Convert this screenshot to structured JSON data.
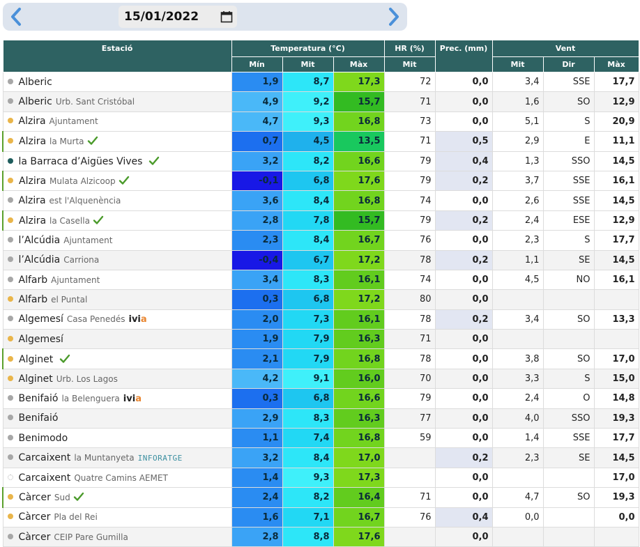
{
  "nav": {
    "prev_icon": "chevron-left-icon",
    "next_icon": "chevron-right-icon",
    "date": "15/01/2022",
    "calendar_icon": "calendar-icon"
  },
  "headers": {
    "station": "Estació",
    "temperature": "Temperatura (°C)",
    "hr": "HR (%)",
    "prec": "Prec. (mm)",
    "wind": "Vent",
    "min": "Mín",
    "mit": "Mit",
    "max": "Màx",
    "hr_mit": "Mit",
    "wind_mit": "Mit",
    "wind_dir": "Dir",
    "wind_max": "Màx"
  },
  "colors": {
    "header_bg": "#2e6262",
    "accent_green": "#5aa02c",
    "rain_cell": "#e2e6f2"
  },
  "rows": [
    {
      "name": "Alberic",
      "loc": "",
      "dot": "grey",
      "check": false,
      "brand": "",
      "hl": false,
      "tmin": "1,9",
      "tmit": "8,7",
      "tmax": "17,3",
      "hr": "72",
      "prec": "0,0",
      "vmit": "3,4",
      "vdir": "SSE",
      "vmax": "17,7"
    },
    {
      "name": "Alberic",
      "loc": "Urb. Sant Cristóbal",
      "dot": "grey",
      "check": false,
      "brand": "",
      "hl": false,
      "tmin": "4,9",
      "tmit": "9,2",
      "tmax": "15,7",
      "hr": "71",
      "prec": "0,0",
      "vmit": "1,6",
      "vdir": "SO",
      "vmax": "12,9"
    },
    {
      "name": "Alzira",
      "loc": "Ajuntament",
      "dot": "yellow",
      "check": false,
      "brand": "",
      "hl": false,
      "tmin": "4,7",
      "tmit": "9,3",
      "tmax": "16,8",
      "hr": "73",
      "prec": "0,0",
      "vmit": "5,1",
      "vdir": "S",
      "vmax": "20,9"
    },
    {
      "name": "Alzira",
      "loc": "la Murta",
      "dot": "yellow",
      "check": true,
      "brand": "",
      "hl": true,
      "tmin": "0,7",
      "tmit": "4,5",
      "tmax": "13,5",
      "hr": "71",
      "prec": "0,5",
      "vmit": "2,9",
      "vdir": "E",
      "vmax": "11,1"
    },
    {
      "name": "la Barraca d’Aigües Vives",
      "loc": "",
      "dot": "teal",
      "check": true,
      "brand": "",
      "hl": false,
      "tmin": "3,2",
      "tmit": "8,2",
      "tmax": "16,6",
      "hr": "79",
      "prec": "0,4",
      "vmit": "1,3",
      "vdir": "SSO",
      "vmax": "14,5"
    },
    {
      "name": "Alzira",
      "loc": "Mulata Alzicoop",
      "dot": "yellow",
      "check": true,
      "brand": "",
      "hl": true,
      "tmin": "-0,1",
      "tmit": "6,8",
      "tmax": "17,6",
      "hr": "79",
      "prec": "0,2",
      "vmit": "3,7",
      "vdir": "SSE",
      "vmax": "16,1"
    },
    {
      "name": "Alzira",
      "loc": "est l'Alquenència",
      "dot": "grey",
      "check": false,
      "brand": "",
      "hl": false,
      "tmin": "3,6",
      "tmit": "8,4",
      "tmax": "16,8",
      "hr": "74",
      "prec": "0,0",
      "vmit": "2,6",
      "vdir": "SSE",
      "vmax": "14,5"
    },
    {
      "name": "Alzira",
      "loc": "la Casella",
      "dot": "yellow",
      "check": true,
      "brand": "",
      "hl": true,
      "tmin": "2,8",
      "tmit": "7,8",
      "tmax": "15,7",
      "hr": "79",
      "prec": "0,2",
      "vmit": "2,4",
      "vdir": "ESE",
      "vmax": "12,9"
    },
    {
      "name": "l’Alcúdia",
      "loc": "Ajuntament",
      "dot": "grey",
      "check": false,
      "brand": "",
      "hl": false,
      "tmin": "2,3",
      "tmit": "8,4",
      "tmax": "16,7",
      "hr": "76",
      "prec": "0,0",
      "vmit": "2,3",
      "vdir": "S",
      "vmax": "17,7"
    },
    {
      "name": "l’Alcúdia",
      "loc": "Carriona",
      "dot": "grey",
      "check": false,
      "brand": "",
      "hl": false,
      "tmin": "-0,4",
      "tmit": "6,7",
      "tmax": "17,2",
      "hr": "78",
      "prec": "0,2",
      "vmit": "1,1",
      "vdir": "SE",
      "vmax": "14,5"
    },
    {
      "name": "Alfarb",
      "loc": "Ajuntament",
      "dot": "grey",
      "check": false,
      "brand": "",
      "hl": false,
      "tmin": "3,4",
      "tmit": "8,3",
      "tmax": "16,1",
      "hr": "74",
      "prec": "0,0",
      "vmit": "4,5",
      "vdir": "NO",
      "vmax": "16,1"
    },
    {
      "name": "Alfarb",
      "loc": "el Puntal",
      "dot": "yellow",
      "check": false,
      "brand": "",
      "hl": false,
      "tmin": "0,3",
      "tmit": "6,8",
      "tmax": "17,2",
      "hr": "80",
      "prec": "0,0",
      "vmit": "",
      "vdir": "",
      "vmax": ""
    },
    {
      "name": "Algemesí",
      "loc": "Casa Penedés",
      "dot": "grey",
      "check": false,
      "brand": "ivia",
      "hl": false,
      "tmin": "2,0",
      "tmit": "7,3",
      "tmax": "16,1",
      "hr": "78",
      "prec": "0,2",
      "vmit": "3,4",
      "vdir": "SO",
      "vmax": "13,3"
    },
    {
      "name": "Algemesí",
      "loc": "",
      "dot": "yellow",
      "check": false,
      "brand": "",
      "hl": false,
      "tmin": "1,9",
      "tmit": "7,9",
      "tmax": "16,3",
      "hr": "71",
      "prec": "0,0",
      "vmit": "",
      "vdir": "",
      "vmax": ""
    },
    {
      "name": "Alginet",
      "loc": "",
      "dot": "yellow",
      "check": true,
      "brand": "",
      "hl": true,
      "tmin": "2,1",
      "tmit": "7,9",
      "tmax": "16,8",
      "hr": "78",
      "prec": "0,0",
      "vmit": "3,8",
      "vdir": "SO",
      "vmax": "17,0"
    },
    {
      "name": "Alginet",
      "loc": "Urb. Los Lagos",
      "dot": "yellow",
      "check": false,
      "brand": "",
      "hl": false,
      "tmin": "4,2",
      "tmit": "9,1",
      "tmax": "16,0",
      "hr": "70",
      "prec": "0,0",
      "vmit": "3,3",
      "vdir": "S",
      "vmax": "15,0"
    },
    {
      "name": "Benifaió",
      "loc": "la Belenguera",
      "dot": "grey",
      "check": false,
      "brand": "ivia",
      "hl": false,
      "tmin": "0,3",
      "tmit": "6,8",
      "tmax": "16,6",
      "hr": "79",
      "prec": "0,0",
      "vmit": "2,4",
      "vdir": "O",
      "vmax": "14,8"
    },
    {
      "name": "Benifaió",
      "loc": "",
      "dot": "grey",
      "check": false,
      "brand": "",
      "hl": false,
      "tmin": "2,9",
      "tmit": "8,3",
      "tmax": "16,3",
      "hr": "77",
      "prec": "0,0",
      "vmit": "4,0",
      "vdir": "SSO",
      "vmax": "19,3"
    },
    {
      "name": "Benimodo",
      "loc": "",
      "dot": "grey",
      "check": false,
      "brand": "",
      "hl": false,
      "tmin": "1,1",
      "tmit": "7,4",
      "tmax": "16,8",
      "hr": "59",
      "prec": "0,0",
      "vmit": "1,4",
      "vdir": "SSE",
      "vmax": "17,7"
    },
    {
      "name": "Carcaixent",
      "loc": "la Muntanyeta",
      "dot": "grey",
      "check": false,
      "brand": "INFORATGE",
      "hl": false,
      "tmin": "3,2",
      "tmit": "8,4",
      "tmax": "17,0",
      "hr": "",
      "prec": "0,2",
      "vmit": "2,3",
      "vdir": "SE",
      "vmax": "14,5"
    },
    {
      "name": "Carcaixent",
      "loc": "Quatre Camins AEMET",
      "dot": "hollow",
      "check": false,
      "brand": "",
      "hl": false,
      "tmin": "1,4",
      "tmit": "9,3",
      "tmax": "17,3",
      "hr": "",
      "prec": "0,0",
      "vmit": "",
      "vdir": "",
      "vmax": "17,0"
    },
    {
      "name": "Càrcer",
      "loc": "Sud",
      "dot": "yellow",
      "check": true,
      "brand": "",
      "hl": true,
      "tmin": "2,4",
      "tmit": "8,2",
      "tmax": "16,4",
      "hr": "71",
      "prec": "0,0",
      "vmit": "4,7",
      "vdir": "SO",
      "vmax": "19,3"
    },
    {
      "name": "Càrcer",
      "loc": "Pla del Rei",
      "dot": "yellow",
      "check": false,
      "brand": "",
      "hl": false,
      "tmin": "1,6",
      "tmit": "7,1",
      "tmax": "16,7",
      "hr": "76",
      "prec": "0,4",
      "vmit": "0,0",
      "vdir": "",
      "vmax": "0,0"
    },
    {
      "name": "Càrcer",
      "loc": "CEIP Pare Gumilla",
      "dot": "grey",
      "check": false,
      "brand": "",
      "hl": false,
      "tmin": "2,8",
      "tmit": "8,8",
      "tmax": "17,6",
      "hr": "",
      "prec": "0,0",
      "vmit": "",
      "vdir": "",
      "vmax": ""
    }
  ]
}
